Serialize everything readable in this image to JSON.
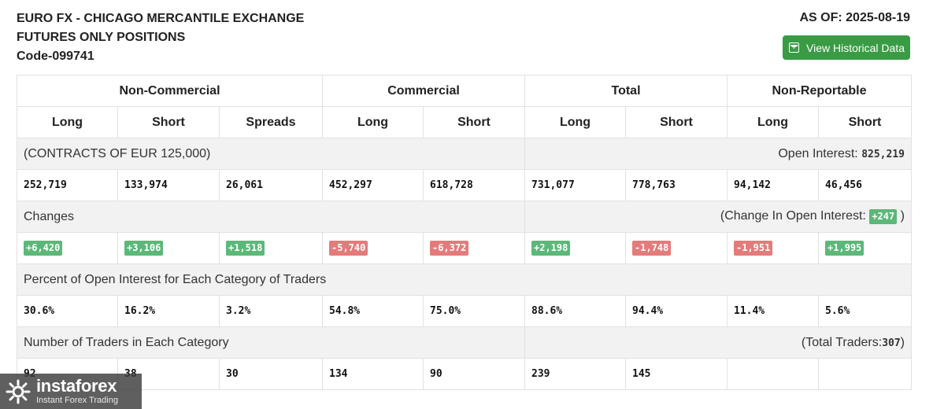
{
  "header": {
    "title_line1": "EURO FX - CHICAGO MERCANTILE EXCHANGE",
    "title_line2": "FUTURES ONLY POSITIONS",
    "code": "Code-099741",
    "as_of": "AS OF: 2025-08-19",
    "historical_button": "View Historical Data"
  },
  "table": {
    "groups": [
      "Non-Commercial",
      "Commercial",
      "Total",
      "Non-Reportable"
    ],
    "subheaders": [
      "Long",
      "Short",
      "Spreads",
      "Long",
      "Short",
      "Long",
      "Short",
      "Long",
      "Short"
    ],
    "contracts_label": "(CONTRACTS OF EUR 125,000)",
    "open_interest_label": "Open Interest:",
    "open_interest_value": "825,219",
    "positions": [
      "252,719",
      "133,974",
      "26,061",
      "452,297",
      "618,728",
      "731,077",
      "778,763",
      "94,142",
      "46,456"
    ],
    "changes_label": "Changes",
    "change_oi_label": "(Change In Open Interest:",
    "change_oi_value": "+247",
    "change_oi_close": ")",
    "changes": [
      "+6,420",
      "+3,106",
      "+1,518",
      "-5,740",
      "-6,372",
      "+2,198",
      "-1,748",
      "-1,951",
      "+1,995"
    ],
    "percent_label": "Percent of Open Interest for Each Category of Traders",
    "percents": [
      "30.6%",
      "16.2%",
      "3.2%",
      "54.8%",
      "75.0%",
      "88.6%",
      "94.4%",
      "11.4%",
      "5.6%"
    ],
    "traders_label": "Number of Traders in Each Category",
    "total_traders_label": "(Total Traders:",
    "total_traders_value": "307",
    "total_traders_close": ")",
    "traders": [
      "92",
      "38",
      "30",
      "134",
      "90",
      "239",
      "145",
      "",
      ""
    ]
  },
  "watermark": {
    "name": "instaforex",
    "tagline": "Instant Forex Trading"
  },
  "colors": {
    "button_green": "#3a9b45",
    "badge_positive": "#5cb878",
    "badge_negative": "#e47b7b",
    "row_gray": "#f2f2f2"
  }
}
